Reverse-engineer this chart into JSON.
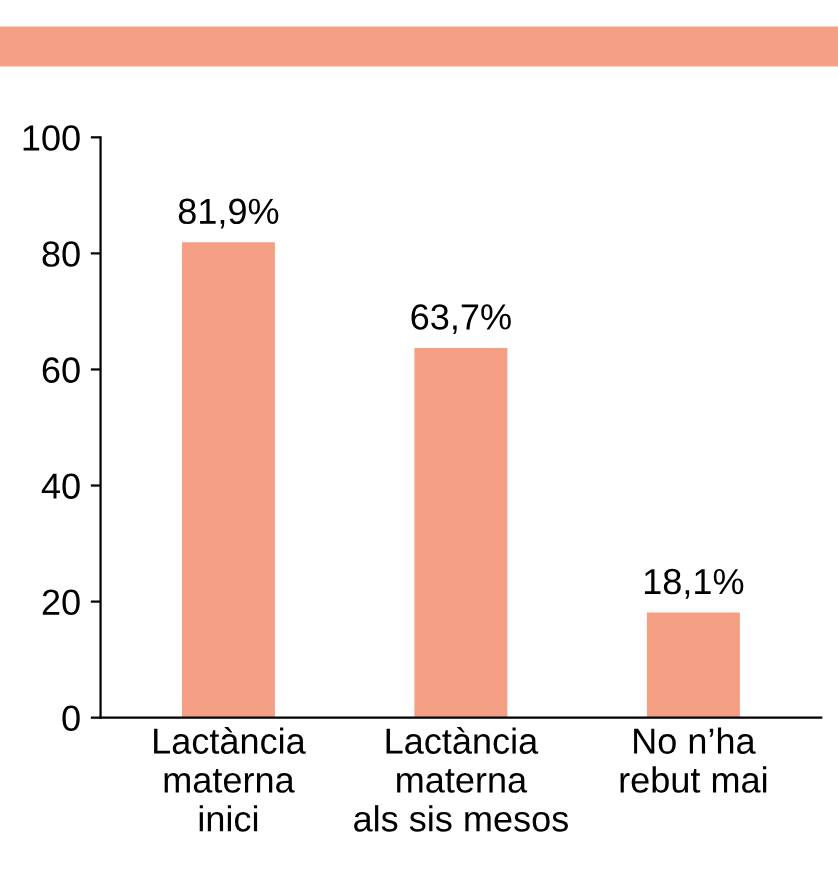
{
  "chart_data": {
    "type": "bar",
    "categories": [
      "Lactància\nmaterna\ninici",
      "Lactància\nmaterna\nals sis mesos",
      "No n’ha\nrebut mai"
    ],
    "values": [
      81.9,
      63.7,
      18.1
    ],
    "value_labels": [
      "81,9%",
      "63,7%",
      "18,1%"
    ],
    "color": "#f5a084",
    "ylim": [
      0,
      100
    ],
    "yticks": [
      0,
      20,
      40,
      60,
      80,
      100
    ],
    "grid": false
  }
}
